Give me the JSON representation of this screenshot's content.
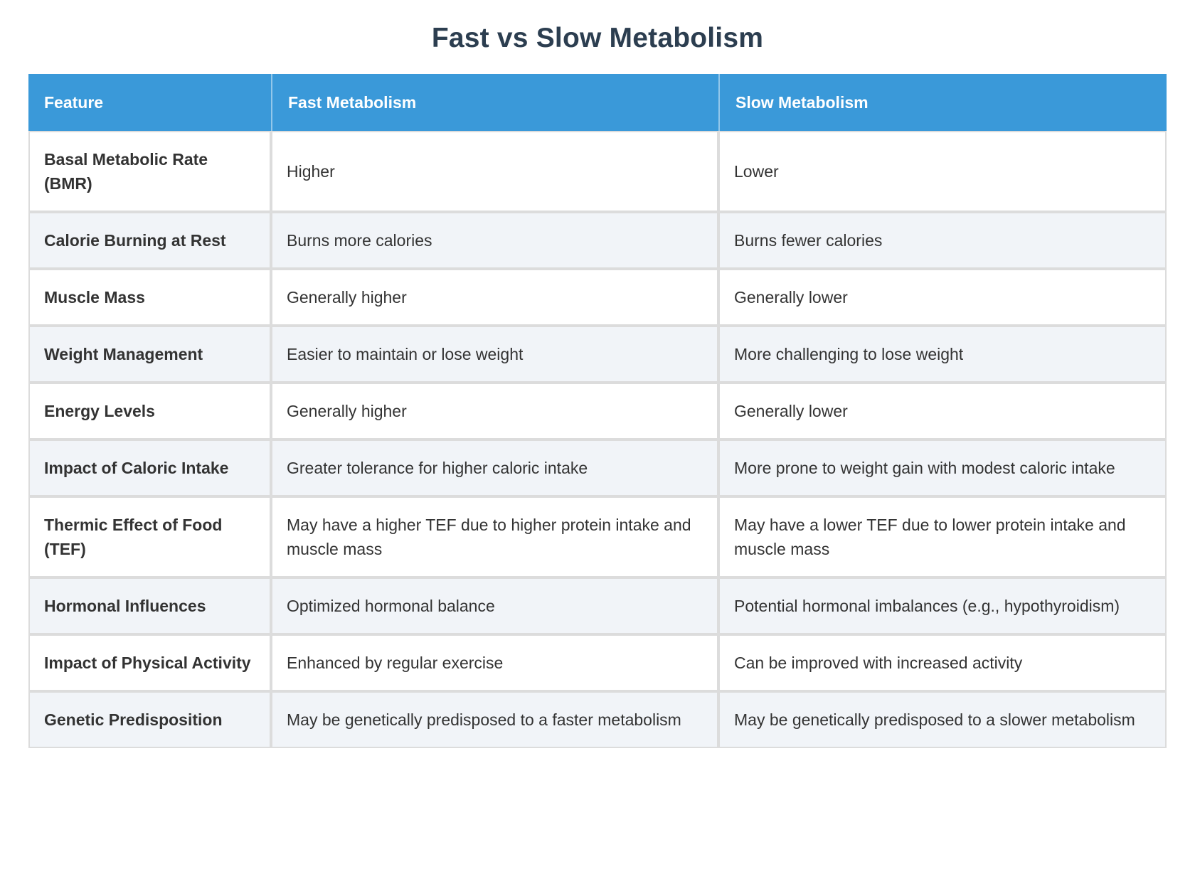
{
  "title": "Fast vs Slow Metabolism",
  "colors": {
    "header_bg": "#3a99d9",
    "header_text": "#ffffff",
    "title_text": "#2c3e50",
    "row_alt_bg": "#f1f4f8",
    "border": "#dcdcdc",
    "body_text": "#333333"
  },
  "table": {
    "columns": [
      "Feature",
      "Fast Metabolism",
      "Slow Metabolism"
    ],
    "rows": [
      {
        "feature": "Basal Metabolic Rate (BMR)",
        "fast": "Higher",
        "slow": "Lower"
      },
      {
        "feature": "Calorie Burning at Rest",
        "fast": "Burns more calories",
        "slow": "Burns fewer calories"
      },
      {
        "feature": "Muscle Mass",
        "fast": "Generally higher",
        "slow": "Generally lower"
      },
      {
        "feature": "Weight Management",
        "fast": "Easier to maintain or lose weight",
        "slow": "More challenging to lose weight"
      },
      {
        "feature": "Energy Levels",
        "fast": "Generally higher",
        "slow": "Generally lower"
      },
      {
        "feature": "Impact of Caloric Intake",
        "fast": "Greater tolerance for higher caloric intake",
        "slow": "More prone to weight gain with modest caloric intake"
      },
      {
        "feature": "Thermic Effect of Food (TEF)",
        "fast": "May have a higher TEF due to higher protein intake and muscle mass",
        "slow": "May have a lower TEF due to lower protein intake and muscle mass"
      },
      {
        "feature": "Hormonal Influences",
        "fast": "Optimized hormonal balance",
        "slow": "Potential hormonal imbalances (e.g., hypothyroidism)"
      },
      {
        "feature": "Impact of Physical Activity",
        "fast": "Enhanced by regular exercise",
        "slow": "Can be improved with increased activity"
      },
      {
        "feature": "Genetic Predisposition",
        "fast": "May be genetically predisposed to a faster metabolism",
        "slow": "May be genetically predisposed to a slower metabolism"
      }
    ]
  }
}
